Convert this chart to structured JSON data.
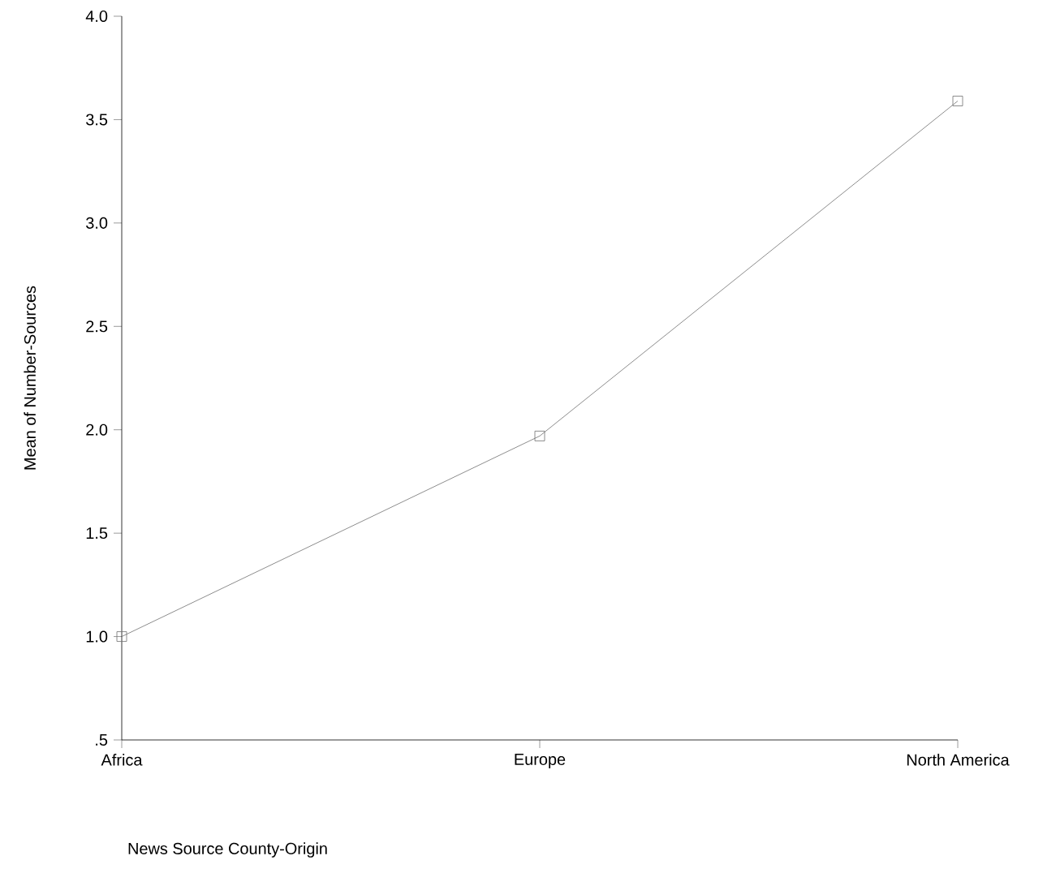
{
  "chart_data": {
    "type": "line",
    "xlabel": "News Source County-Origin",
    "ylabel": "Mean of Number-Sources",
    "categories": [
      "Africa",
      "Europe",
      "North America"
    ],
    "series": [
      {
        "color": "#707070",
        "values": [
          1.0,
          1.97,
          3.59
        ]
      }
    ],
    "ylim": [
      0.5,
      4.0
    ],
    "yticks": [
      {
        "value": 0.5,
        "label": ".5"
      },
      {
        "value": 1.0,
        "label": "1.0"
      },
      {
        "value": 1.5,
        "label": "1.5"
      },
      {
        "value": 2.0,
        "label": "2.0"
      },
      {
        "value": 2.5,
        "label": "2.5"
      },
      {
        "value": 3.0,
        "label": "3.0"
      },
      {
        "value": 3.5,
        "label": "3.5"
      },
      {
        "value": 4.0,
        "label": "4.0"
      }
    ],
    "marker": "square",
    "line_style": "solid",
    "grid": false
  }
}
